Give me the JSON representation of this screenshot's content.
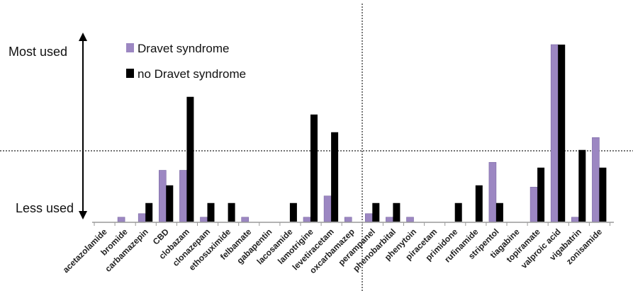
{
  "chart_data": {
    "type": "bar",
    "title": "",
    "xlabel": "",
    "ylabel": "",
    "scale_labels": {
      "top": "Most used",
      "bottom": "Less used"
    },
    "ylim": [
      0,
      100
    ],
    "grid": false,
    "legend_position": "top-left",
    "reference_lines": {
      "horizontal_value": 40
    },
    "categories": [
      "acetazolamide",
      "bromide",
      "carbamazepin",
      "CBD",
      "clobazam",
      "clonazepam",
      "ethosuximide",
      "felbamate",
      "gabapentin",
      "lacosamide",
      "lamotrigine",
      "levetiracetam",
      "oxcarbamazep",
      "perampanel",
      "phenobarbital",
      "phenytoin",
      "piracetam",
      "primidone",
      "rufinamide",
      "stripentol",
      "tiagabine",
      "topiramate",
      "valproic acid",
      "vigabatrin",
      "zonisamide"
    ],
    "series": [
      {
        "name": "Dravet syndrome",
        "color": "#9c87c2",
        "values": [
          0,
          2.5,
          4.5,
          29,
          29,
          2.5,
          0,
          2.5,
          0,
          0,
          2.5,
          14.5,
          2.5,
          4.5,
          2.5,
          2.5,
          0,
          0,
          0,
          33.5,
          0,
          19.5,
          100,
          2.5,
          47.5
        ]
      },
      {
        "name": "no Dravet syndrome",
        "color": "#000000",
        "values": [
          0,
          0,
          10.5,
          20.5,
          70.5,
          10.5,
          10.5,
          0,
          0,
          10.5,
          60.5,
          50.5,
          0,
          10.5,
          10.5,
          0,
          0,
          10.5,
          20.5,
          10.5,
          0,
          30.5,
          100,
          40.5,
          30.5
        ]
      }
    ]
  }
}
